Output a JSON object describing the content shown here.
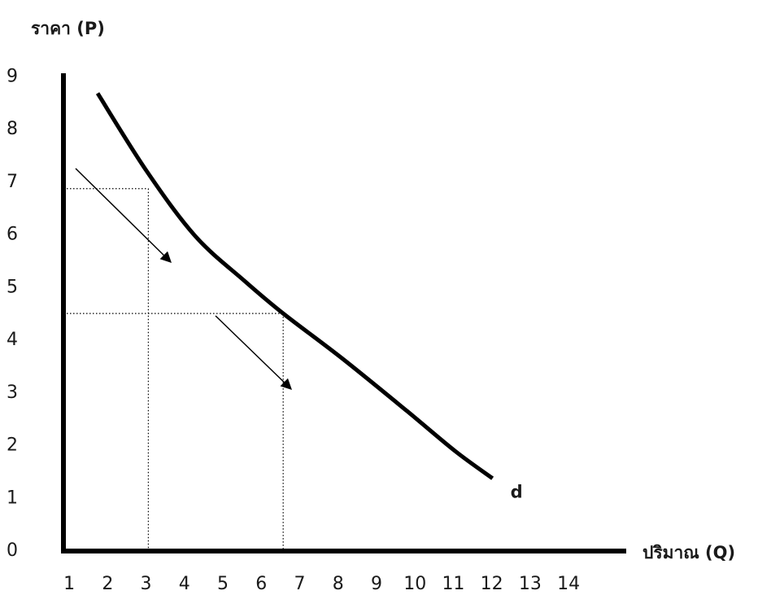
{
  "chart_data": {
    "type": "line",
    "ylabel": "ราคา (P)",
    "xlabel": "ปริมาณ (Q)",
    "xlim": [
      0.85,
      15.5
    ],
    "ylim": [
      0,
      9.07
    ],
    "xticks": [
      1,
      2,
      3,
      4,
      5,
      6,
      7,
      8,
      9,
      10,
      11,
      12,
      13,
      14
    ],
    "yticks": [
      0,
      1,
      2,
      3,
      4,
      5,
      6,
      7,
      8,
      9
    ],
    "grid": false,
    "series": [
      {
        "name": "d",
        "color": "#000000",
        "x": [
          1.74,
          3.01,
          4.28,
          5.56,
          6.57,
          8.1,
          9.79,
          11.06,
          12.02
        ],
        "values": [
          8.69,
          7.22,
          5.98,
          5.13,
          4.51,
          3.66,
          2.66,
          1.89,
          1.38
        ]
      }
    ],
    "guides": [
      {
        "x": 3.06,
        "y": 6.88
      },
      {
        "x": 6.57,
        "y": 4.51
      }
    ]
  }
}
